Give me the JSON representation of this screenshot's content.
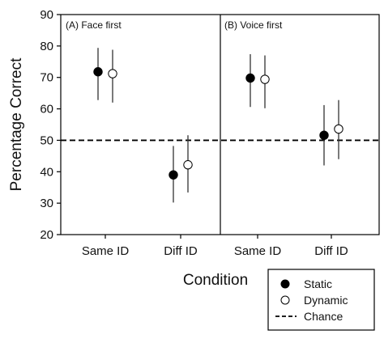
{
  "chart_data": {
    "type": "scatter",
    "subtype": "dot-plot-with-error-bars",
    "title": "",
    "xlabel": "Condition",
    "ylabel": "Percentage Correct",
    "ylim": [
      20,
      90
    ],
    "yticks": [
      20,
      30,
      40,
      50,
      60,
      70,
      80,
      90
    ],
    "categories": [
      "Same ID",
      "Diff ID",
      "Same ID",
      "Diff ID"
    ],
    "panels": [
      {
        "label": "(A) Face first",
        "categories": [
          "Same ID",
          "Diff ID"
        ]
      },
      {
        "label": "(B) Voice first",
        "categories": [
          "Same ID",
          "Diff ID"
        ]
      }
    ],
    "series": [
      {
        "name": "Static",
        "marker": "filled-circle",
        "color": "#000000",
        "values": [
          71.8,
          39.0,
          69.8,
          51.6
        ],
        "error_low": [
          62.8,
          30.2,
          60.6,
          42.0
        ],
        "error_high": [
          79.4,
          48.2,
          77.4,
          61.2
        ]
      },
      {
        "name": "Dynamic",
        "marker": "open-circle",
        "color": "#000000",
        "values": [
          71.2,
          42.2,
          69.4,
          53.6
        ],
        "error_low": [
          62.0,
          33.4,
          60.2,
          44.0
        ],
        "error_high": [
          78.8,
          51.6,
          77.0,
          62.8
        ]
      }
    ],
    "reference_line": {
      "name": "Chance",
      "value": 50,
      "style": "dashed"
    },
    "legend": {
      "position": "bottom-right",
      "entries": [
        "Static",
        "Dynamic",
        "Chance"
      ]
    },
    "grid": false
  }
}
